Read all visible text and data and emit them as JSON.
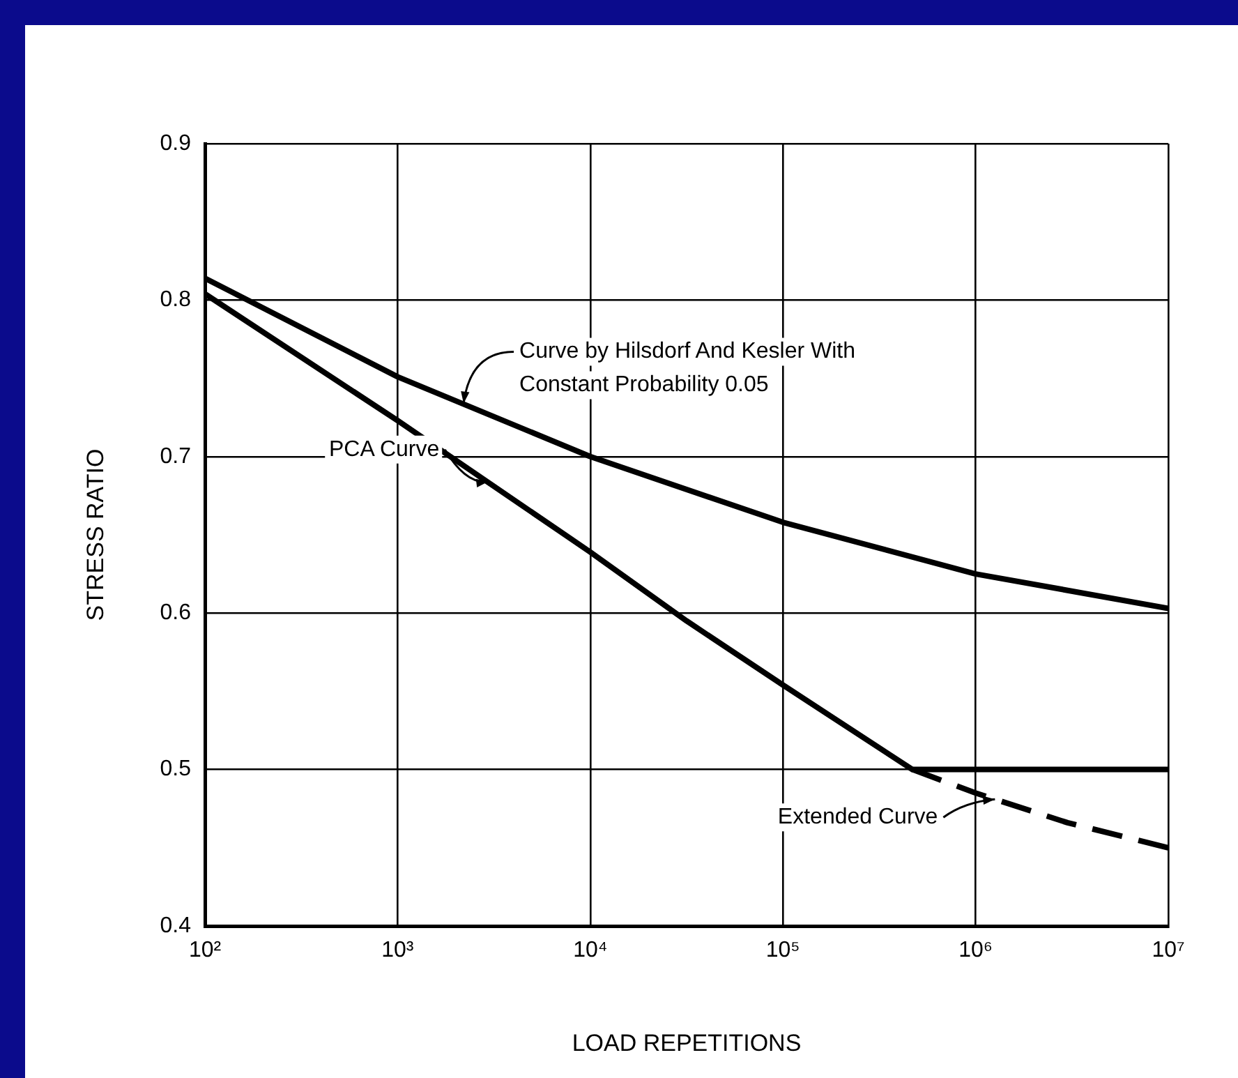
{
  "chart_data": {
    "type": "line",
    "xlabel": "LOAD REPETITIONS",
    "ylabel": "STRESS RATIO",
    "log": "x",
    "xlim": [
      100,
      10000000
    ],
    "xticks": [
      {
        "value": 100,
        "label": "10²"
      },
      {
        "value": 1000,
        "label": "10³"
      },
      {
        "value": 10000,
        "label": "10⁴"
      },
      {
        "value": 100000,
        "label": "10⁵"
      },
      {
        "value": 1000000,
        "label": "10⁶"
      },
      {
        "value": 10000000,
        "label": "10⁷"
      }
    ],
    "ylim": [
      0.4,
      0.9
    ],
    "yticks": [
      0.4,
      0.5,
      0.6,
      0.7,
      0.8,
      0.9
    ],
    "grid": true,
    "legend": false,
    "marker": "none",
    "series": [
      {
        "color": "#000000",
        "line_style": "solid",
        "x": [
          100,
          1000,
          10000,
          100000,
          1000000,
          10000000
        ],
        "values": [
          0.814,
          0.751,
          0.7,
          0.658,
          0.625,
          0.603
        ]
      },
      {
        "color": "#000000",
        "line_style": "solid",
        "x": [
          100,
          1000,
          10000,
          31600,
          100000,
          470000,
          10000000
        ],
        "values": [
          0.804,
          0.723,
          0.639,
          0.595,
          0.554,
          0.5,
          0.5
        ]
      },
      {
        "color": "#000000",
        "line_style": "dashed",
        "x": [
          470000,
          1000000,
          3000000,
          10000000
        ],
        "values": [
          0.5,
          0.485,
          0.466,
          0.45
        ]
      }
    ],
    "annotations": [
      {
        "text": "Curve by Hilsdorf And Kesler With Constant Probability 0.05",
        "x": 2200,
        "y": 0.734
      },
      {
        "text": "PCA Curve",
        "x": 2950,
        "y": 0.684
      },
      {
        "text": "Extended Curve",
        "x": 1260000,
        "y": 0.481
      }
    ]
  }
}
